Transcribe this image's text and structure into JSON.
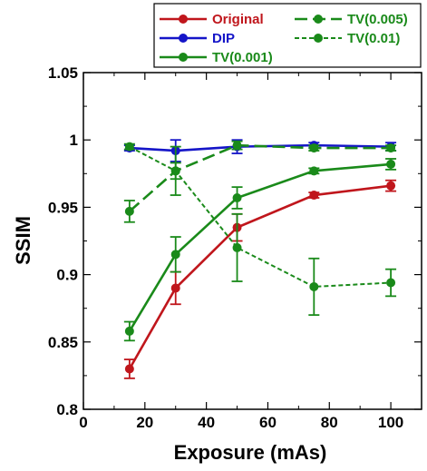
{
  "chart_data": {
    "type": "line",
    "xlabel": "Exposure (mAs)",
    "ylabel": "SSIM",
    "xlim": [
      0,
      110
    ],
    "ylim": [
      0.8,
      1.05
    ],
    "xticks": [
      0,
      20,
      40,
      60,
      80,
      100
    ],
    "xtick_labels": [
      "0",
      "20",
      "40",
      "60",
      "80",
      "100"
    ],
    "yticks": [
      0.8,
      0.85,
      0.9,
      0.95,
      1.0,
      1.05
    ],
    "ytick_labels": [
      "0.8",
      "0.85",
      "0.9",
      "0.95",
      "1",
      "1.05"
    ],
    "grid": false,
    "legend_position": "top",
    "x": [
      15,
      30,
      50,
      75,
      100
    ],
    "series": [
      {
        "name": "Original",
        "color": "#c0161c",
        "dash": "solid",
        "values": [
          0.83,
          0.89,
          0.935,
          0.959,
          0.966
        ],
        "errors": [
          0.007,
          0.012,
          0.01,
          0.002,
          0.004
        ]
      },
      {
        "name": "DIP",
        "color": "#1515c8",
        "dash": "solid",
        "values": [
          0.994,
          0.992,
          0.995,
          0.996,
          0.995
        ],
        "errors": [
          0.002,
          0.008,
          0.005,
          0.002,
          0.003
        ]
      },
      {
        "name": "TV(0.001)",
        "color": "#1a8a1a",
        "dash": "solid",
        "values": [
          0.858,
          0.915,
          0.957,
          0.977,
          0.982
        ],
        "errors": [
          0.007,
          0.013,
          0.008,
          0.002,
          0.004
        ]
      },
      {
        "name": "TV(0.005)",
        "color": "#1a8a1a",
        "dash": "longdash",
        "values": [
          0.947,
          0.977,
          0.996,
          0.994,
          0.994
        ],
        "errors": [
          0.008,
          0.006,
          0.003,
          0.002,
          0.002
        ]
      },
      {
        "name": "TV(0.01)",
        "color": "#1a8a1a",
        "dash": "shortdash",
        "values": [
          0.995,
          0.977,
          0.92,
          0.891,
          0.894
        ],
        "errors": [
          0.002,
          0.018,
          0.025,
          0.021,
          0.01
        ]
      }
    ]
  }
}
